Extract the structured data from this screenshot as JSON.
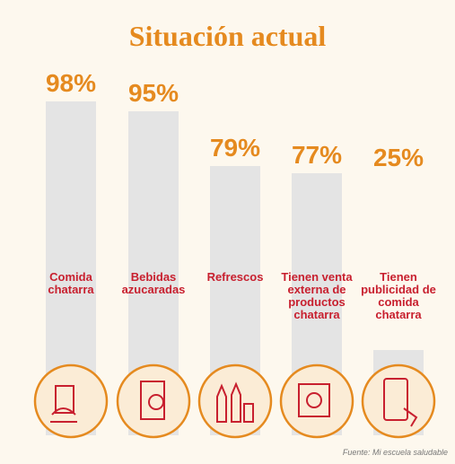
{
  "chart_data": {
    "type": "bar",
    "title": "Situación actual",
    "categories": [
      "Comida chatarra",
      "Bebidas azucaradas",
      "Refrescos",
      "Tienen venta externa de productos chatarra",
      "Tienen publicidad de comida chatarra"
    ],
    "values": [
      98,
      95,
      79,
      77,
      25
    ],
    "value_labels": [
      "98%",
      "95%",
      "79%",
      "77%",
      "25%"
    ],
    "color": "#e4e4e4",
    "source": "Fuente: Mi escuela saludable"
  }
}
